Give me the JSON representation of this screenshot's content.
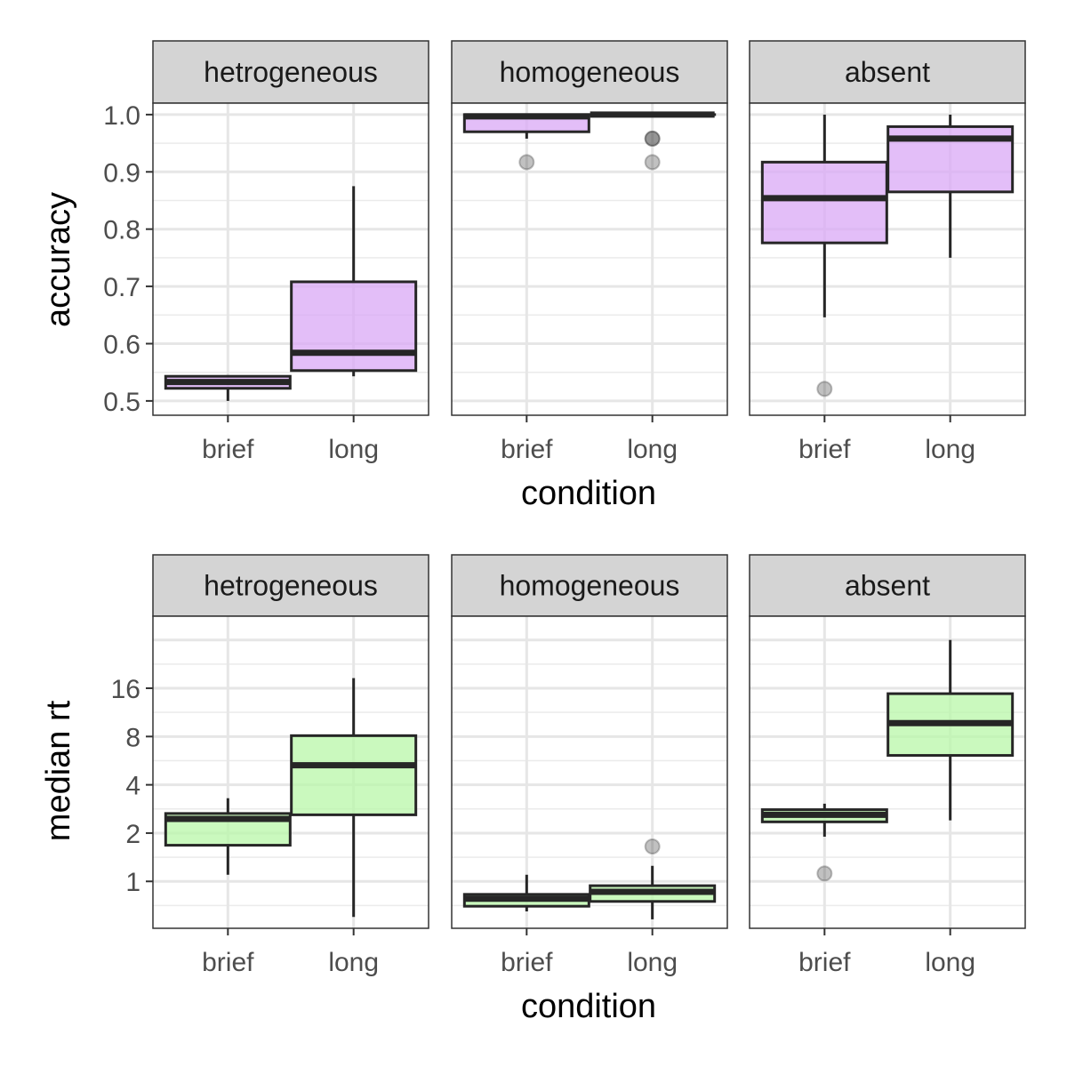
{
  "colors": {
    "accuracy_fill": "#d9a8f5",
    "rt_fill": "#b8f7a8",
    "strip_bg": "#d4d4d4",
    "outlier": "#808080"
  },
  "chart_data": [
    {
      "type": "boxplot",
      "ylabel": "accuracy",
      "xlabel": "condition",
      "yscale": "linear",
      "ylim": [
        0.475,
        1.02
      ],
      "yticks": [
        0.5,
        0.6,
        0.7,
        0.8,
        0.9,
        1.0
      ],
      "ytick_labels": [
        "0.5",
        "0.6",
        "0.7",
        "0.8",
        "0.9",
        "1.0"
      ],
      "categories": [
        "brief",
        "long"
      ],
      "panels": [
        {
          "label": "hetrogeneous",
          "boxes": [
            {
              "x": "brief",
              "whisker_low": 0.5,
              "q1": 0.522,
              "median": 0.533,
              "q3": 0.543,
              "whisker_high": 0.545,
              "outliers": []
            },
            {
              "x": "long",
              "whisker_low": 0.543,
              "q1": 0.553,
              "median": 0.584,
              "q3": 0.708,
              "whisker_high": 0.875,
              "outliers": []
            }
          ]
        },
        {
          "label": "homogeneous",
          "boxes": [
            {
              "x": "brief",
              "whisker_low": 0.958,
              "q1": 0.97,
              "median": 0.997,
              "q3": 1.0,
              "whisker_high": 1.0,
              "outliers": [
                0.917
              ]
            },
            {
              "x": "long",
              "whisker_low": 1.0,
              "q1": 1.0,
              "median": 1.0,
              "q3": 1.0,
              "whisker_high": 1.0,
              "outliers": [
                0.958,
                0.958,
                0.917
              ]
            }
          ]
        },
        {
          "label": "absent",
          "boxes": [
            {
              "x": "brief",
              "whisker_low": 0.646,
              "q1": 0.776,
              "median": 0.854,
              "q3": 0.917,
              "whisker_high": 1.0,
              "outliers": [
                0.521
              ]
            },
            {
              "x": "long",
              "whisker_low": 0.75,
              "q1": 0.865,
              "median": 0.958,
              "q3": 0.979,
              "whisker_high": 1.0,
              "outliers": []
            }
          ]
        }
      ]
    },
    {
      "type": "boxplot",
      "ylabel": "median rt",
      "xlabel": "condition",
      "yscale": "log2",
      "ylim": [
        0.51,
        45
      ],
      "yticks": [
        1,
        2,
        4,
        8,
        16
      ],
      "ytick_labels": [
        "1",
        "2",
        "4",
        "8",
        "16"
      ],
      "categories": [
        "brief",
        "long"
      ],
      "panels": [
        {
          "label": "hetrogeneous",
          "boxes": [
            {
              "x": "brief",
              "whisker_low": 1.1,
              "q1": 1.68,
              "median": 2.45,
              "q3": 2.65,
              "whisker_high": 3.3,
              "outliers": []
            },
            {
              "x": "long",
              "whisker_low": 0.6,
              "q1": 2.6,
              "median": 5.3,
              "q3": 8.1,
              "whisker_high": 18.5,
              "outliers": []
            }
          ]
        },
        {
          "label": "homogeneous",
          "boxes": [
            {
              "x": "brief",
              "whisker_low": 0.65,
              "q1": 0.7,
              "median": 0.78,
              "q3": 0.83,
              "whisker_high": 1.1,
              "outliers": []
            },
            {
              "x": "long",
              "whisker_low": 0.58,
              "q1": 0.75,
              "median": 0.86,
              "q3": 0.94,
              "whisker_high": 1.25,
              "outliers": [
                1.65
              ]
            }
          ]
        },
        {
          "label": "absent",
          "boxes": [
            {
              "x": "brief",
              "whisker_low": 1.9,
              "q1": 2.35,
              "median": 2.6,
              "q3": 2.8,
              "whisker_high": 3.05,
              "outliers": [
                1.12
              ]
            },
            {
              "x": "long",
              "whisker_low": 2.4,
              "q1": 6.1,
              "median": 9.7,
              "q3": 14.8,
              "whisker_high": 32,
              "outliers": []
            }
          ]
        }
      ]
    }
  ]
}
